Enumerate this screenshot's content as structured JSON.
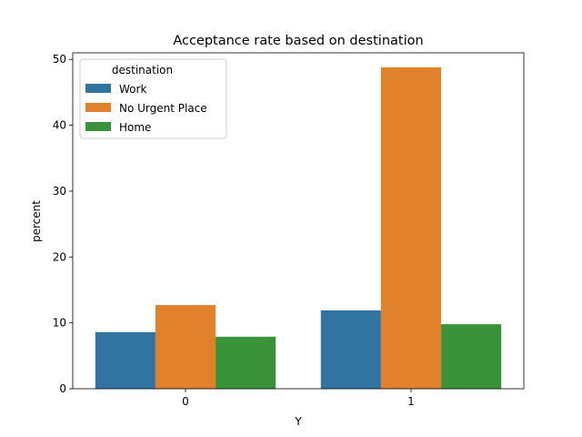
{
  "chart_data": {
    "type": "bar",
    "title": "Acceptance rate based on destination",
    "xlabel": "Y",
    "ylabel": "percent",
    "categories": [
      "0",
      "1"
    ],
    "ylim": [
      0,
      51
    ],
    "yticks": [
      0,
      10,
      20,
      30,
      40,
      50
    ],
    "grid": false,
    "legend": {
      "title": "destination",
      "placement": "top-left"
    },
    "series": [
      {
        "name": "Work",
        "color": "#3274a1",
        "values": [
          8.6,
          11.9
        ]
      },
      {
        "name": "No Urgent Place",
        "color": "#e1812c",
        "values": [
          12.7,
          48.8
        ]
      },
      {
        "name": "Home",
        "color": "#3a923a",
        "values": [
          7.9,
          9.8
        ]
      }
    ]
  }
}
